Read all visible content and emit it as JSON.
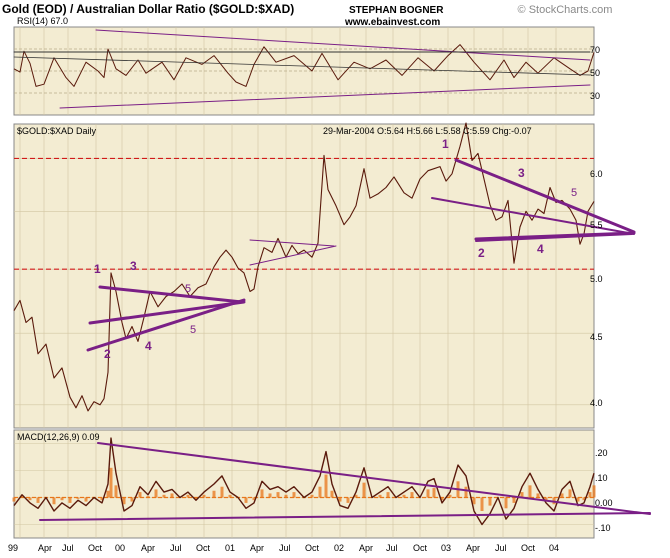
{
  "header": {
    "title": "Gold (EOD) / Australian Dollar Ratio ($GOLD:$XAD)",
    "author": "STEPHAN BOGNER",
    "website": "www.ebainvest.com",
    "watermark": "© StockCharts.com"
  },
  "colors": {
    "panel_bg": "#f3ecd2",
    "price_line": "#5a1a0c",
    "trend_line": "#7a1f86",
    "red_dash": "#d11a1a",
    "macd_hist": "#e8761a"
  },
  "rsi_panel": {
    "label": "RSI(14) 67.0",
    "ticks": [
      "70",
      "50",
      "30"
    ]
  },
  "price_panel": {
    "label": "$GOLD:$XAD Daily",
    "ohlc": "29-Mar-2004 O:5.64 H:5.66 L:5.58 C:5.59 Chg:-0.07",
    "ticks": [
      "6.0",
      "5.5",
      "5.0",
      "4.5",
      "4.0"
    ],
    "wave_labels": [
      "1",
      "2",
      "3",
      "4",
      "5",
      "1",
      "2",
      "3",
      "4",
      "5"
    ]
  },
  "macd_panel": {
    "label": "MACD(12,26,9) 0.09",
    "ticks": [
      ".20",
      ".10",
      "0.00",
      "-.10"
    ]
  },
  "x_axis": {
    "labels": [
      "99",
      "Apr",
      "Jul",
      "Oct",
      "00",
      "Apr",
      "Jul",
      "Oct",
      "01",
      "Apr",
      "Jul",
      "Oct",
      "02",
      "Apr",
      "Jul",
      "Oct",
      "03",
      "Apr",
      "Jul",
      "Oct",
      "04"
    ]
  },
  "chart_data": [
    {
      "type": "line",
      "name": "RSI(14)",
      "title": "RSI(14) 67.0",
      "ylim": [
        10,
        90
      ],
      "reference_lines": [
        70,
        50,
        30
      ],
      "last_value": 67.0,
      "points": [
        [
          0,
          52
        ],
        [
          6,
          49
        ],
        [
          10,
          68
        ],
        [
          16,
          57
        ],
        [
          22,
          36
        ],
        [
          30,
          38
        ],
        [
          40,
          62
        ],
        [
          52,
          44
        ],
        [
          60,
          36
        ],
        [
          72,
          58
        ],
        [
          84,
          50
        ],
        [
          90,
          44
        ],
        [
          94,
          70
        ],
        [
          102,
          52
        ],
        [
          112,
          46
        ],
        [
          124,
          60
        ],
        [
          132,
          48
        ],
        [
          148,
          58
        ],
        [
          160,
          42
        ],
        [
          172,
          62
        ],
        [
          188,
          56
        ],
        [
          200,
          64
        ],
        [
          214,
          48
        ],
        [
          222,
          40
        ],
        [
          232,
          36
        ],
        [
          240,
          56
        ],
        [
          250,
          72
        ],
        [
          262,
          58
        ],
        [
          280,
          64
        ],
        [
          298,
          50
        ],
        [
          308,
          66
        ],
        [
          324,
          42
        ],
        [
          340,
          58
        ],
        [
          356,
          52
        ],
        [
          372,
          60
        ],
        [
          388,
          46
        ],
        [
          404,
          62
        ],
        [
          420,
          50
        ],
        [
          434,
          64
        ],
        [
          446,
          74
        ],
        [
          460,
          58
        ],
        [
          476,
          42
        ],
        [
          490,
          60
        ],
        [
          500,
          44
        ],
        [
          512,
          58
        ],
        [
          524,
          48
        ],
        [
          540,
          62
        ],
        [
          556,
          52
        ],
        [
          566,
          46
        ],
        [
          574,
          50
        ],
        [
          580,
          67
        ]
      ]
    },
    {
      "type": "line",
      "name": "$GOLD:$XAD",
      "title": "$GOLD:$XAD Daily",
      "log_scale": true,
      "ylim": [
        3.85,
        6.35
      ],
      "points": [
        [
          0,
          4.67
        ],
        [
          6,
          4.75
        ],
        [
          12,
          4.58
        ],
        [
          18,
          4.62
        ],
        [
          24,
          4.35
        ],
        [
          32,
          4.42
        ],
        [
          40,
          4.18
        ],
        [
          48,
          4.25
        ],
        [
          56,
          4.05
        ],
        [
          62,
          3.98
        ],
        [
          68,
          4.06
        ],
        [
          74,
          3.96
        ],
        [
          80,
          4.02
        ],
        [
          86,
          4.0
        ],
        [
          90,
          4.04
        ],
        [
          94,
          4.22
        ],
        [
          97,
          4.97
        ],
        [
          102,
          4.82
        ],
        [
          108,
          4.58
        ],
        [
          112,
          4.46
        ],
        [
          118,
          4.55
        ],
        [
          124,
          4.44
        ],
        [
          130,
          4.62
        ],
        [
          136,
          4.82
        ],
        [
          144,
          4.7
        ],
        [
          152,
          4.78
        ],
        [
          160,
          4.82
        ],
        [
          168,
          4.88
        ],
        [
          176,
          4.78
        ],
        [
          184,
          4.85
        ],
        [
          192,
          4.88
        ],
        [
          200,
          5.02
        ],
        [
          206,
          5.1
        ],
        [
          212,
          5.16
        ],
        [
          218,
          5.1
        ],
        [
          224,
          5.01
        ],
        [
          230,
          4.97
        ],
        [
          236,
          4.82
        ],
        [
          240,
          4.84
        ],
        [
          244,
          5.02
        ],
        [
          250,
          5.18
        ],
        [
          258,
          5.14
        ],
        [
          264,
          5.26
        ],
        [
          272,
          5.1
        ],
        [
          278,
          5.2
        ],
        [
          284,
          5.13
        ],
        [
          290,
          5.16
        ],
        [
          298,
          5.1
        ],
        [
          304,
          5.22
        ],
        [
          310,
          6.03
        ],
        [
          314,
          5.7
        ],
        [
          322,
          5.55
        ],
        [
          330,
          5.38
        ],
        [
          336,
          5.45
        ],
        [
          342,
          5.55
        ],
        [
          350,
          5.9
        ],
        [
          356,
          5.62
        ],
        [
          364,
          5.66
        ],
        [
          372,
          5.72
        ],
        [
          380,
          5.82
        ],
        [
          390,
          5.67
        ],
        [
          398,
          5.62
        ],
        [
          406,
          5.8
        ],
        [
          414,
          5.88
        ],
        [
          420,
          5.9
        ],
        [
          426,
          5.92
        ],
        [
          432,
          5.78
        ],
        [
          438,
          5.85
        ],
        [
          446,
          6.12
        ],
        [
          452,
          6.36
        ],
        [
          458,
          5.98
        ],
        [
          464,
          6.05
        ],
        [
          470,
          5.8
        ],
        [
          476,
          5.56
        ],
        [
          482,
          5.42
        ],
        [
          488,
          5.45
        ],
        [
          494,
          5.6
        ],
        [
          500,
          5.05
        ],
        [
          506,
          5.36
        ],
        [
          512,
          5.5
        ],
        [
          518,
          5.42
        ],
        [
          524,
          5.52
        ],
        [
          530,
          5.48
        ],
        [
          536,
          5.72
        ],
        [
          542,
          5.58
        ],
        [
          548,
          5.6
        ],
        [
          556,
          5.52
        ],
        [
          562,
          5.42
        ],
        [
          566,
          5.21
        ],
        [
          570,
          5.3
        ],
        [
          574,
          5.5
        ],
        [
          580,
          5.59
        ]
      ],
      "red_dashed_levels": [
        6.0,
        5.0
      ],
      "last_value": 5.59
    },
    {
      "type": "line",
      "name": "MACD(12,26,9)",
      "title": "MACD(12,26,9) 0.09",
      "ylim": [
        -0.15,
        0.25
      ],
      "reference_lines": [
        0.0
      ],
      "last_value": 0.09,
      "points": [
        [
          0,
          -0.03
        ],
        [
          8,
          0.01
        ],
        [
          16,
          -0.02
        ],
        [
          24,
          -0.04
        ],
        [
          32,
          0.0
        ],
        [
          40,
          -0.05
        ],
        [
          48,
          -0.02
        ],
        [
          56,
          -0.04
        ],
        [
          64,
          -0.01
        ],
        [
          72,
          -0.03
        ],
        [
          80,
          0.0
        ],
        [
          88,
          -0.02
        ],
        [
          94,
          0.05
        ],
        [
          97,
          0.22
        ],
        [
          102,
          0.09
        ],
        [
          110,
          -0.05
        ],
        [
          118,
          -0.03
        ],
        [
          126,
          0.04
        ],
        [
          134,
          0.01
        ],
        [
          142,
          0.06
        ],
        [
          150,
          0.02
        ],
        [
          158,
          0.03
        ],
        [
          166,
          0.0
        ],
        [
          174,
          0.02
        ],
        [
          182,
          -0.01
        ],
        [
          190,
          0.02
        ],
        [
          200,
          0.05
        ],
        [
          208,
          0.08
        ],
        [
          216,
          0.02
        ],
        [
          224,
          0.0
        ],
        [
          232,
          -0.04
        ],
        [
          240,
          -0.02
        ],
        [
          248,
          0.06
        ],
        [
          256,
          0.03
        ],
        [
          264,
          0.04
        ],
        [
          272,
          0.02
        ],
        [
          280,
          0.04
        ],
        [
          290,
          0.0
        ],
        [
          298,
          0.02
        ],
        [
          306,
          0.08
        ],
        [
          312,
          0.17
        ],
        [
          318,
          0.05
        ],
        [
          326,
          -0.03
        ],
        [
          334,
          -0.04
        ],
        [
          342,
          0.02
        ],
        [
          350,
          0.11
        ],
        [
          358,
          0.0
        ],
        [
          366,
          0.02
        ],
        [
          374,
          0.04
        ],
        [
          382,
          0.0
        ],
        [
          390,
          0.02
        ],
        [
          398,
          0.04
        ],
        [
          406,
          0.0
        ],
        [
          414,
          0.06
        ],
        [
          420,
          0.07
        ],
        [
          428,
          -0.02
        ],
        [
          436,
          0.02
        ],
        [
          444,
          0.12
        ],
        [
          452,
          0.08
        ],
        [
          460,
          -0.05
        ],
        [
          468,
          -0.1
        ],
        [
          476,
          -0.06
        ],
        [
          484,
          0.0
        ],
        [
          492,
          -0.08
        ],
        [
          500,
          -0.04
        ],
        [
          508,
          0.04
        ],
        [
          516,
          0.09
        ],
        [
          524,
          0.03
        ],
        [
          532,
          -0.02
        ],
        [
          540,
          -0.05
        ],
        [
          548,
          0.03
        ],
        [
          556,
          0.06
        ],
        [
          564,
          -0.03
        ],
        [
          570,
          -0.02
        ],
        [
          576,
          0.04
        ],
        [
          580,
          0.09
        ]
      ]
    }
  ]
}
